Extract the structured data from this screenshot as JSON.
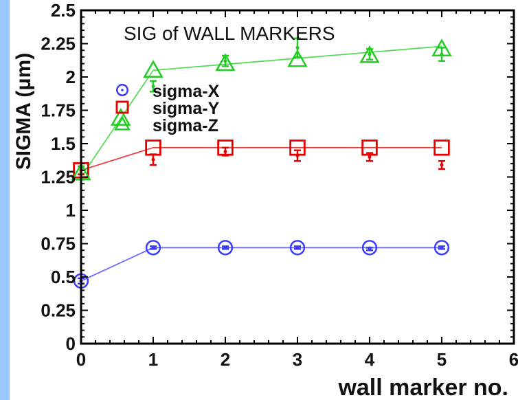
{
  "chart_data": {
    "type": "scatter",
    "title": "SIG of WALL MARKERS",
    "xlabel": "wall marker no.",
    "ylabel": "SIGMA (μm)",
    "xlim": [
      0,
      6
    ],
    "ylim": [
      0,
      2.5
    ],
    "x_ticks": [
      "0",
      "1",
      "2",
      "3",
      "4",
      "5",
      "6"
    ],
    "y_ticks": [
      "0",
      "0.25",
      "0.5",
      "0.75",
      "1",
      "1.25",
      "1.5",
      "1.75",
      "2",
      "2.25",
      "2.5"
    ],
    "grid": false,
    "legend_position": "upper-left",
    "series": [
      {
        "name": "sigma-X",
        "color": "#3b3bff",
        "marker": "circle",
        "points": [
          {
            "x": 0,
            "y": 0.47,
            "err": 0.02
          },
          {
            "x": 1,
            "y": 0.72,
            "err": 0.01
          },
          {
            "x": 2,
            "y": 0.72,
            "err": 0.01
          },
          {
            "x": 3,
            "y": 0.72,
            "err": 0.01
          },
          {
            "x": 4,
            "y": 0.72,
            "err": 0.01
          },
          {
            "x": 5,
            "y": 0.72,
            "err": 0.01
          }
        ],
        "fit": [
          [
            0,
            0.47
          ],
          [
            1,
            0.72
          ],
          [
            2,
            0.72
          ],
          [
            3,
            0.72
          ],
          [
            4,
            0.72
          ],
          [
            5,
            0.72
          ]
        ],
        "measured": [
          {
            "x": 0,
            "y": 0.47,
            "err": 0.02
          },
          {
            "x": 1,
            "y": 0.72,
            "err": 0.01
          },
          {
            "x": 2,
            "y": 0.72,
            "err": 0.01
          },
          {
            "x": 3,
            "y": 0.72,
            "err": 0.01
          },
          {
            "x": 4,
            "y": 0.71,
            "err": 0.01
          },
          {
            "x": 5,
            "y": 0.72,
            "err": 0.01
          }
        ]
      },
      {
        "name": "sigma-Y",
        "color": "#e60000",
        "marker": "square",
        "points": [
          {
            "x": 0,
            "y": 1.3,
            "err": 0.03
          },
          {
            "x": 1,
            "y": 1.47,
            "err": 0.02
          },
          {
            "x": 2,
            "y": 1.47,
            "err": 0.02
          },
          {
            "x": 3,
            "y": 1.47,
            "err": 0.02
          },
          {
            "x": 4,
            "y": 1.47,
            "err": 0.02
          },
          {
            "x": 5,
            "y": 1.47,
            "err": 0.02
          }
        ],
        "fit": [
          [
            0,
            1.3
          ],
          [
            1,
            1.47
          ],
          [
            2,
            1.47
          ],
          [
            3,
            1.47
          ],
          [
            4,
            1.47
          ],
          [
            5,
            1.47
          ]
        ],
        "measured": [
          {
            "x": 0,
            "y": 1.3,
            "err": 0.03
          },
          {
            "x": 1,
            "y": 1.38,
            "err": 0.04
          },
          {
            "x": 2,
            "y": 1.44,
            "err": 0.03
          },
          {
            "x": 3,
            "y": 1.41,
            "err": 0.04
          },
          {
            "x": 4,
            "y": 1.4,
            "err": 0.03
          },
          {
            "x": 5,
            "y": 1.34,
            "err": 0.03
          }
        ]
      },
      {
        "name": "sigma-Z",
        "color": "#22cc22",
        "marker": "triangle",
        "points": [
          {
            "x": 0,
            "y": 1.28,
            "err": 0.05
          },
          {
            "x": 0.55,
            "y": 1.69,
            "err": 0.03
          },
          {
            "x": 1,
            "y": 2.05,
            "err": 0.03
          },
          {
            "x": 2,
            "y": 2.1,
            "err": 0.03
          },
          {
            "x": 3,
            "y": 2.13,
            "err": 0.03
          },
          {
            "x": 4,
            "y": 2.16,
            "err": 0.03
          },
          {
            "x": 5,
            "y": 2.21,
            "err": 0.03
          }
        ],
        "fit": [
          [
            0,
            1.25
          ],
          [
            1,
            2.05
          ],
          [
            5,
            2.23
          ]
        ],
        "measured": [
          {
            "x": 0,
            "y": 1.28,
            "err": 0.05
          },
          {
            "x": 1,
            "y": 1.93,
            "err": 0.04
          },
          {
            "x": 2,
            "y": 2.12,
            "err": 0.04
          },
          {
            "x": 3,
            "y": 2.22,
            "err": 0.07
          },
          {
            "x": 4,
            "y": 2.17,
            "err": 0.04
          },
          {
            "x": 5,
            "y": 2.17,
            "err": 0.05
          }
        ]
      }
    ]
  }
}
